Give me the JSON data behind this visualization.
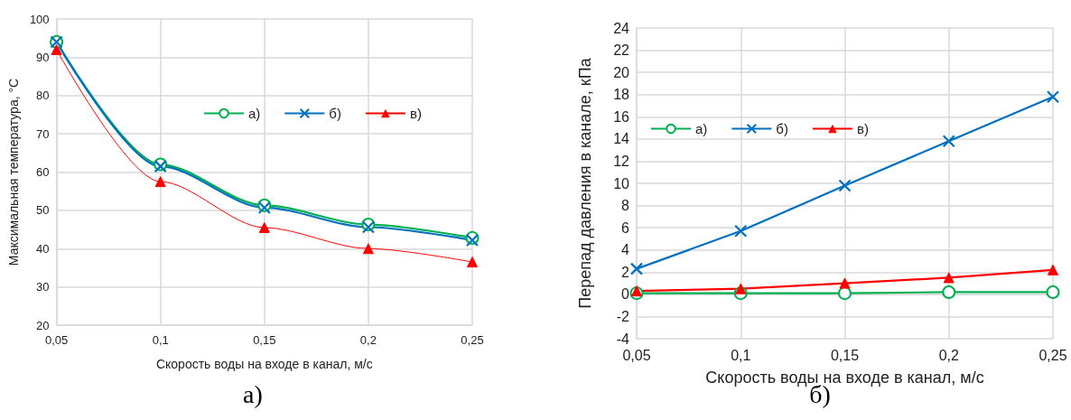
{
  "chart_data": [
    {
      "type": "line",
      "xlabel": "Скорость воды на входе в канал, м/с",
      "ylabel": "Максимальная температура, °C",
      "x": [
        0.05,
        0.1,
        0.15,
        0.2,
        0.25
      ],
      "xlim": [
        0.05,
        0.25
      ],
      "xticks": [
        {
          "value": 0.05,
          "label": "0,05"
        },
        {
          "value": 0.1,
          "label": "0,1"
        },
        {
          "value": 0.15,
          "label": "0,15"
        },
        {
          "value": 0.2,
          "label": "0,2"
        },
        {
          "value": 0.25,
          "label": "0,25"
        }
      ],
      "ylim": [
        20,
        100
      ],
      "yticks": [
        20,
        30,
        40,
        50,
        60,
        70,
        80,
        90,
        100
      ],
      "grid": true,
      "legend": "top",
      "annotations": [
        "а)"
      ],
      "series": [
        {
          "name": "а)",
          "color": "#00b050",
          "marker": "circle",
          "values": [
            94,
            62,
            51.3,
            46.3,
            42.8
          ]
        },
        {
          "name": "б)",
          "color": "#0070c0",
          "marker": "cross",
          "values": [
            94,
            61.5,
            50.7,
            45.6,
            42.2
          ]
        },
        {
          "name": "в)",
          "color": "#ff0000",
          "marker": "triangle",
          "values": [
            92,
            57.5,
            45.5,
            40,
            36.5
          ]
        }
      ]
    },
    {
      "type": "line",
      "xlabel": "Скорость воды на входе в канал, м/с",
      "ylabel": "Перепад давления в канале, кПа",
      "x": [
        0.05,
        0.1,
        0.15,
        0.2,
        0.25
      ],
      "xlim": [
        0.05,
        0.25
      ],
      "xticks": [
        {
          "value": 0.05,
          "label": "0,05"
        },
        {
          "value": 0.1,
          "label": "0,1"
        },
        {
          "value": 0.15,
          "label": "0,15"
        },
        {
          "value": 0.2,
          "label": "0,2"
        },
        {
          "value": 0.25,
          "label": "0,25"
        }
      ],
      "ylim": [
        -4,
        24
      ],
      "yticks": [
        -4,
        -2,
        0,
        2,
        4,
        6,
        8,
        10,
        12,
        14,
        16,
        18,
        20,
        22,
        24
      ],
      "grid": true,
      "legend": "top left",
      "annotations": [
        "б)"
      ],
      "series": [
        {
          "name": "а)",
          "color": "#00b050",
          "marker": "circle",
          "values": [
            0.1,
            0.1,
            0.1,
            0.2,
            0.2
          ]
        },
        {
          "name": "б)",
          "color": "#0070c0",
          "marker": "cross",
          "values": [
            2.3,
            5.7,
            9.8,
            13.8,
            17.8
          ]
        },
        {
          "name": "в)",
          "color": "#ff0000",
          "marker": "triangle",
          "values": [
            0.3,
            0.5,
            1,
            1.5,
            2.2
          ]
        }
      ]
    }
  ]
}
